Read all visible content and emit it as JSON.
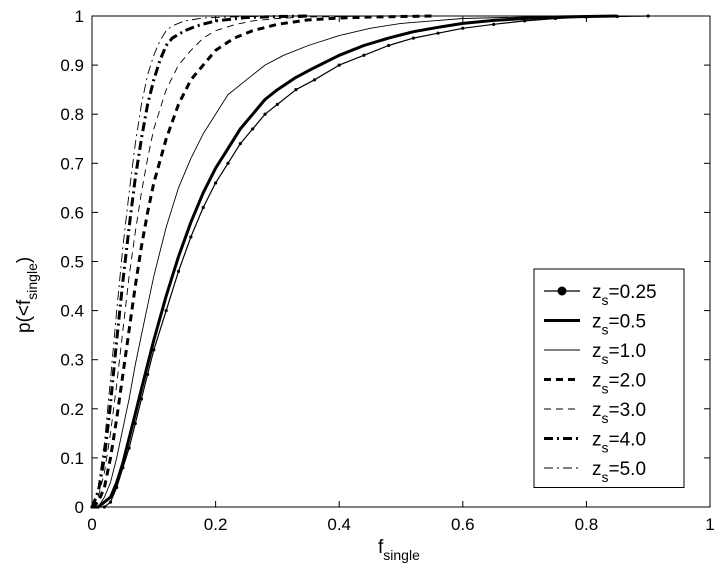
{
  "chart_data": {
    "type": "line",
    "title": "",
    "xlabel": {
      "main": "f",
      "sub": "single"
    },
    "ylabel": {
      "pre": "p(<f",
      "sub": "single",
      "post": ")"
    },
    "xlim": [
      0,
      1
    ],
    "ylim": [
      0,
      1
    ],
    "xticks": [
      0,
      0.2,
      0.4,
      0.6,
      0.8,
      1
    ],
    "xtick_labels": [
      "0",
      "0.2",
      "0.4",
      "0.6",
      "0.8",
      "1"
    ],
    "yticks": [
      0,
      0.1,
      0.2,
      0.3,
      0.4,
      0.5,
      0.6,
      0.7,
      0.8,
      0.9,
      1
    ],
    "ytick_labels": [
      "0",
      "0.1",
      "0.2",
      "0.3",
      "0.4",
      "0.5",
      "0.6",
      "0.7",
      "0.8",
      "0.9",
      "1"
    ],
    "grid": false,
    "legend_position": "bottom-right",
    "series": [
      {
        "name": "z_s=0.25",
        "label_main": "z",
        "label_sub": "s",
        "label_value": "=0.25",
        "style": "dotted-marker",
        "x": [
          0.0,
          0.01,
          0.02,
          0.03,
          0.04,
          0.05,
          0.06,
          0.07,
          0.08,
          0.09,
          0.1,
          0.12,
          0.14,
          0.16,
          0.18,
          0.2,
          0.22,
          0.24,
          0.26,
          0.28,
          0.3,
          0.33,
          0.36,
          0.4,
          0.44,
          0.48,
          0.52,
          0.56,
          0.6,
          0.65,
          0.7,
          0.75,
          0.8,
          0.85,
          0.9
        ],
        "y": [
          0.0,
          0.0,
          0.0,
          0.01,
          0.04,
          0.08,
          0.12,
          0.17,
          0.22,
          0.27,
          0.32,
          0.4,
          0.48,
          0.55,
          0.61,
          0.66,
          0.7,
          0.74,
          0.77,
          0.8,
          0.82,
          0.85,
          0.87,
          0.9,
          0.92,
          0.94,
          0.955,
          0.965,
          0.975,
          0.983,
          0.99,
          0.995,
          0.998,
          0.999,
          1.0
        ]
      },
      {
        "name": "z_s=0.5",
        "label_main": "z",
        "label_sub": "s",
        "label_value": "=0.5",
        "style": "thick-solid",
        "x": [
          0.0,
          0.01,
          0.02,
          0.03,
          0.04,
          0.05,
          0.06,
          0.07,
          0.08,
          0.09,
          0.1,
          0.12,
          0.14,
          0.16,
          0.18,
          0.2,
          0.22,
          0.24,
          0.26,
          0.28,
          0.3,
          0.33,
          0.36,
          0.4,
          0.44,
          0.48,
          0.52,
          0.56,
          0.6,
          0.65,
          0.7,
          0.75,
          0.8,
          0.85
        ],
        "y": [
          0.0,
          0.0,
          0.01,
          0.02,
          0.05,
          0.09,
          0.14,
          0.19,
          0.24,
          0.29,
          0.34,
          0.43,
          0.51,
          0.58,
          0.64,
          0.69,
          0.73,
          0.77,
          0.8,
          0.83,
          0.85,
          0.875,
          0.895,
          0.92,
          0.94,
          0.955,
          0.968,
          0.977,
          0.985,
          0.991,
          0.995,
          0.998,
          0.999,
          1.0
        ]
      },
      {
        "name": "z_s=1.0",
        "label_main": "z",
        "label_sub": "s",
        "label_value": "=1.0",
        "style": "thin-solid",
        "x": [
          0.0,
          0.01,
          0.02,
          0.03,
          0.04,
          0.05,
          0.06,
          0.07,
          0.08,
          0.09,
          0.1,
          0.12,
          0.14,
          0.16,
          0.18,
          0.2,
          0.22,
          0.25,
          0.28,
          0.31,
          0.35,
          0.4,
          0.45,
          0.5,
          0.55,
          0.6,
          0.7,
          0.8,
          0.88
        ],
        "y": [
          0.0,
          0.0,
          0.02,
          0.05,
          0.1,
          0.16,
          0.22,
          0.29,
          0.35,
          0.41,
          0.47,
          0.57,
          0.65,
          0.71,
          0.76,
          0.8,
          0.84,
          0.87,
          0.9,
          0.92,
          0.94,
          0.96,
          0.975,
          0.985,
          0.99,
          0.995,
          0.998,
          0.999,
          1.0
        ]
      },
      {
        "name": "z_s=2.0",
        "label_main": "z",
        "label_sub": "s",
        "label_value": "=2.0",
        "style": "thick-dashed",
        "x": [
          0.0,
          0.01,
          0.02,
          0.03,
          0.04,
          0.05,
          0.06,
          0.07,
          0.08,
          0.09,
          0.1,
          0.12,
          0.14,
          0.16,
          0.18,
          0.2,
          0.23,
          0.26,
          0.3,
          0.35,
          0.4,
          0.45,
          0.5,
          0.55
        ],
        "y": [
          0.0,
          0.01,
          0.04,
          0.1,
          0.18,
          0.27,
          0.36,
          0.45,
          0.53,
          0.6,
          0.66,
          0.75,
          0.82,
          0.87,
          0.9,
          0.93,
          0.955,
          0.97,
          0.983,
          0.992,
          0.996,
          0.998,
          0.999,
          1.0
        ]
      },
      {
        "name": "z_s=3.0",
        "label_main": "z",
        "label_sub": "s",
        "label_value": "=3.0",
        "style": "thin-dashed",
        "x": [
          0.0,
          0.01,
          0.02,
          0.03,
          0.04,
          0.05,
          0.06,
          0.07,
          0.08,
          0.09,
          0.1,
          0.12,
          0.14,
          0.16,
          0.18,
          0.2,
          0.23,
          0.26,
          0.3,
          0.35,
          0.4,
          0.45
        ],
        "y": [
          0.0,
          0.02,
          0.07,
          0.15,
          0.25,
          0.36,
          0.47,
          0.56,
          0.64,
          0.71,
          0.77,
          0.85,
          0.9,
          0.93,
          0.955,
          0.97,
          0.982,
          0.99,
          0.995,
          0.998,
          0.999,
          1.0
        ]
      },
      {
        "name": "z_s=4.0",
        "label_main": "z",
        "label_sub": "s",
        "label_value": "=4.0",
        "style": "thick-dashdot",
        "x": [
          0.0,
          0.01,
          0.02,
          0.03,
          0.04,
          0.05,
          0.06,
          0.07,
          0.08,
          0.09,
          0.1,
          0.11,
          0.12,
          0.13,
          0.15,
          0.17,
          0.2,
          0.25,
          0.3,
          0.35
        ],
        "y": [
          0.0,
          0.03,
          0.1,
          0.21,
          0.34,
          0.46,
          0.57,
          0.67,
          0.75,
          0.82,
          0.87,
          0.91,
          0.94,
          0.955,
          0.97,
          0.98,
          0.99,
          0.997,
          0.999,
          1.0
        ]
      },
      {
        "name": "z_s=5.0",
        "label_main": "z",
        "label_sub": "s",
        "label_value": "=5.0",
        "style": "thin-dashdot",
        "x": [
          0.0,
          0.01,
          0.02,
          0.03,
          0.04,
          0.05,
          0.06,
          0.07,
          0.08,
          0.09,
          0.1,
          0.11,
          0.12,
          0.13,
          0.15,
          0.18,
          0.22,
          0.26,
          0.3
        ],
        "y": [
          0.0,
          0.04,
          0.13,
          0.26,
          0.4,
          0.53,
          0.64,
          0.74,
          0.82,
          0.88,
          0.92,
          0.95,
          0.97,
          0.98,
          0.99,
          0.996,
          0.998,
          0.999,
          1.0
        ]
      }
    ]
  }
}
